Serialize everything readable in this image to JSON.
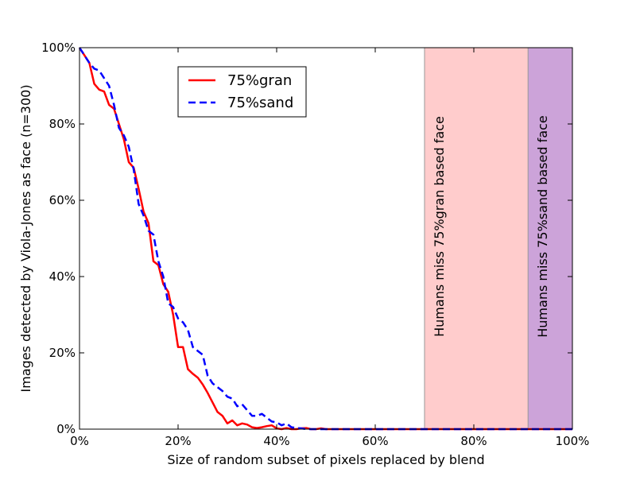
{
  "chart_data": {
    "type": "line",
    "title": "",
    "xlabel": "Size of random subset of pixels replaced by blend",
    "ylabel": "Images detected by Viola-Jones as face (n=300)",
    "xlim": [
      0,
      100
    ],
    "ylim": [
      0,
      100
    ],
    "x_ticks": [
      {
        "value": 0,
        "label": "0%"
      },
      {
        "value": 20,
        "label": "20%"
      },
      {
        "value": 40,
        "label": "40%"
      },
      {
        "value": 60,
        "label": "60%"
      },
      {
        "value": 80,
        "label": "80%"
      },
      {
        "value": 100,
        "label": "100%"
      }
    ],
    "y_ticks": [
      {
        "value": 0,
        "label": "0%"
      },
      {
        "value": 20,
        "label": "20%"
      },
      {
        "value": 40,
        "label": "40%"
      },
      {
        "value": 60,
        "label": "60%"
      },
      {
        "value": 80,
        "label": "80%"
      },
      {
        "value": 100,
        "label": "100%"
      }
    ],
    "legend_position": "upper-left-center",
    "series": [
      {
        "name": "75%gran",
        "color": "#ff0000",
        "style": "solid",
        "x": [
          0,
          0.5,
          1,
          2,
          3,
          4,
          5,
          6,
          7,
          8,
          9,
          10,
          11,
          12,
          13,
          14,
          15,
          16,
          17,
          18,
          19,
          20,
          21,
          22,
          23,
          24,
          25,
          26,
          27,
          28,
          29,
          30,
          31,
          32,
          33,
          34,
          35,
          36,
          37,
          38,
          39,
          40,
          41,
          42,
          43,
          44,
          45,
          46,
          47,
          48,
          49,
          50,
          52,
          55,
          60,
          65,
          70,
          75,
          80,
          85,
          90,
          95,
          100
        ],
        "values": [
          100,
          99,
          98,
          96,
          90.5,
          89,
          88.5,
          85,
          84,
          80,
          76,
          70,
          68.5,
          63,
          57,
          54,
          44,
          43,
          38,
          36,
          30,
          21.5,
          21.5,
          15.7,
          14.5,
          13.5,
          11.7,
          9.5,
          7,
          4.5,
          3.5,
          1.5,
          2.3,
          1,
          1.5,
          1.2,
          0.5,
          0.3,
          0.5,
          0.8,
          1,
          0.2,
          0,
          0.3,
          0,
          0,
          0.2,
          0.3,
          0,
          0,
          0.2,
          0,
          0,
          0,
          0,
          0,
          0,
          0,
          0,
          0,
          0,
          0,
          0
        ]
      },
      {
        "name": "75%sand",
        "color": "#0000ff",
        "style": "dashed",
        "x": [
          0,
          1,
          2,
          3,
          4,
          5,
          6,
          7,
          8,
          9,
          10,
          11,
          12,
          13,
          14,
          15,
          16,
          17,
          18,
          19,
          20,
          21,
          22,
          23,
          24,
          25,
          26,
          27,
          28,
          29,
          30,
          31,
          32,
          33,
          34,
          35,
          36,
          37,
          38,
          39,
          40,
          41,
          42,
          43,
          44,
          45,
          46,
          47,
          48,
          50,
          55,
          60,
          70,
          80,
          90,
          100
        ],
        "values": [
          100,
          98,
          96,
          94.5,
          94,
          92,
          90,
          85,
          79,
          77,
          74,
          68,
          59,
          56,
          52,
          51,
          44,
          40,
          33,
          32,
          29,
          28,
          26,
          21.5,
          20.5,
          19.5,
          14,
          12,
          11,
          10,
          8.5,
          8,
          6,
          6.5,
          5,
          3.5,
          3.5,
          4,
          3,
          2,
          1.8,
          1,
          1.5,
          0.5,
          0.3,
          0.2,
          0,
          0,
          0,
          0,
          0,
          0,
          0,
          0,
          0,
          0
        ]
      }
    ],
    "regions": [
      {
        "x_start": 70,
        "x_end": 91,
        "color": "#ffcccc",
        "label": "Humans miss 75%gran based face"
      },
      {
        "x_start": 91,
        "x_end": 100,
        "color": "#cca3d9",
        "label": "Humans miss 75%sand based face"
      }
    ]
  }
}
